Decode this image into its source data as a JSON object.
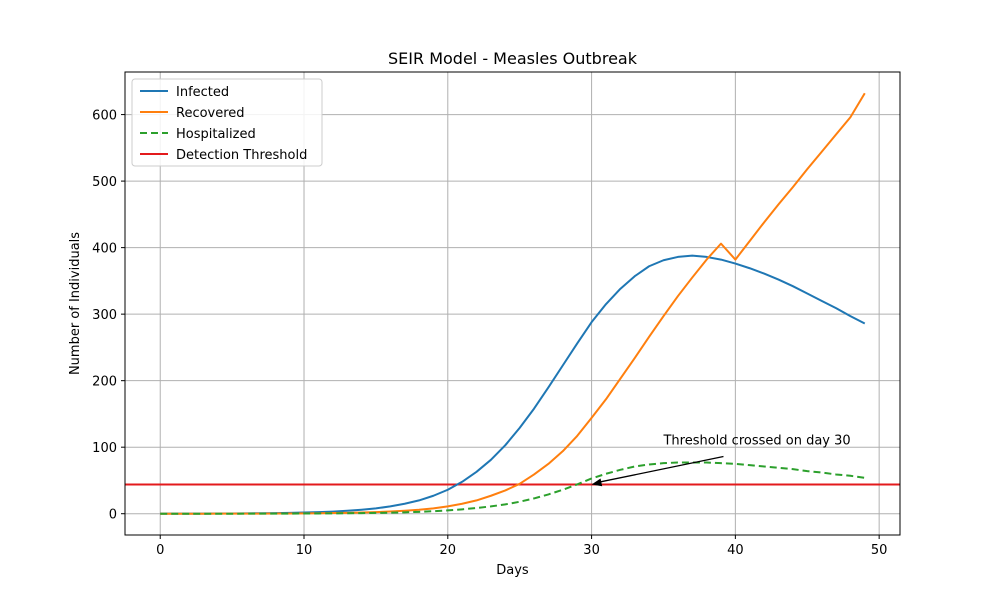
{
  "chart_data": {
    "type": "line",
    "title": "SEIR Model - Measles Outbreak",
    "xlabel": "Days",
    "ylabel": "Number of Individuals",
    "xlim": [
      -2.45,
      51.45
    ],
    "ylim": [
      -32,
      664
    ],
    "xticks": [
      0,
      10,
      20,
      30,
      40,
      50
    ],
    "yticks": [
      0,
      100,
      200,
      300,
      400,
      500,
      600
    ],
    "grid": true,
    "legend_position": "top-left",
    "x": [
      0,
      1,
      2,
      3,
      4,
      5,
      6,
      7,
      8,
      9,
      10,
      11,
      12,
      13,
      14,
      15,
      16,
      17,
      18,
      19,
      20,
      21,
      22,
      23,
      24,
      25,
      26,
      27,
      28,
      29,
      30,
      31,
      32,
      33,
      34,
      35,
      36,
      37,
      38,
      39,
      40,
      41,
      42,
      43,
      44,
      45,
      46,
      47,
      48,
      49
    ],
    "series": [
      {
        "name": "Infected",
        "color": "#1f77b4",
        "style": "solid",
        "values": [
          0.1,
          0.12,
          0.15,
          0.2,
          0.25,
          0.35,
          0.5,
          0.7,
          0.95,
          1.3,
          1.8,
          2.4,
          3.2,
          4.4,
          6,
          8,
          11,
          15,
          20,
          27,
          36,
          48,
          63,
          81,
          103,
          129,
          158,
          190,
          223,
          256,
          288,
          315,
          338,
          357,
          372,
          381,
          386,
          388,
          386,
          382,
          376,
          369,
          361,
          352,
          342,
          331,
          320,
          309,
          297,
          286
        ]
      },
      {
        "name": "Recovered",
        "color": "#ff7f0e",
        "style": "solid",
        "values": [
          0,
          0,
          0,
          0,
          0.05,
          0.1,
          0.15,
          0.2,
          0.3,
          0.4,
          0.5,
          0.7,
          1,
          1.3,
          1.8,
          2.4,
          3.3,
          4.5,
          6,
          8,
          11,
          15,
          20,
          27,
          35,
          45,
          59,
          75,
          94,
          117,
          144,
          172,
          203,
          234,
          266,
          297,
          327,
          355,
          382,
          406,
          382,
          410,
          438,
          465,
          491,
          518,
          544,
          570,
          596,
          632
        ]
      },
      {
        "name": "Hospitalized",
        "color": "#2ca02c",
        "style": "dashed",
        "values": [
          0,
          0,
          0,
          0,
          0,
          0,
          0.05,
          0.1,
          0.15,
          0.2,
          0.3,
          0.4,
          0.5,
          0.7,
          0.9,
          1.2,
          1.6,
          2.1,
          2.8,
          3.8,
          5,
          6.6,
          8.6,
          11,
          14,
          18,
          23,
          29,
          36,
          44,
          53,
          60,
          66,
          71,
          74,
          76,
          77,
          77,
          77,
          76,
          75,
          73,
          71,
          69,
          67,
          64,
          62,
          59,
          57,
          54
        ]
      }
    ],
    "threshold": {
      "name": "Detection Threshold",
      "value": 44,
      "color": "#e31a1c"
    },
    "annotation": {
      "text": "Threshold crossed on day 30",
      "point": [
        30,
        44
      ],
      "text_anchor_point": [
        35,
        104
      ]
    }
  }
}
